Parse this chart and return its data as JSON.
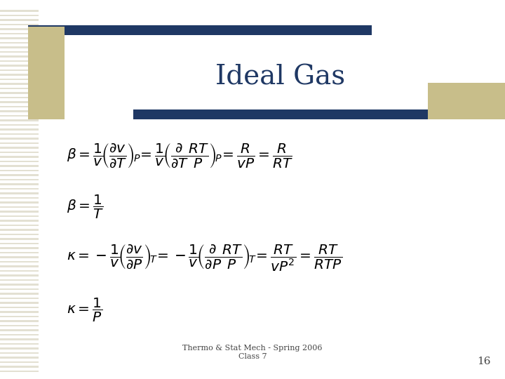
{
  "title": "Ideal Gas",
  "title_color": "#1F3864",
  "title_fontsize": 28,
  "bg_color": "#FFFFFF",
  "bar_color_top": "#1F3864",
  "bar_color_side": "#C8BE8A",
  "footer_text": "Thermo & Stat Mech - Spring 2006\nClass 7",
  "footer_number": "16",
  "eq_color": "#000000",
  "eq_fontsize": 14.5,
  "stripe_color": "#D8D4C0"
}
